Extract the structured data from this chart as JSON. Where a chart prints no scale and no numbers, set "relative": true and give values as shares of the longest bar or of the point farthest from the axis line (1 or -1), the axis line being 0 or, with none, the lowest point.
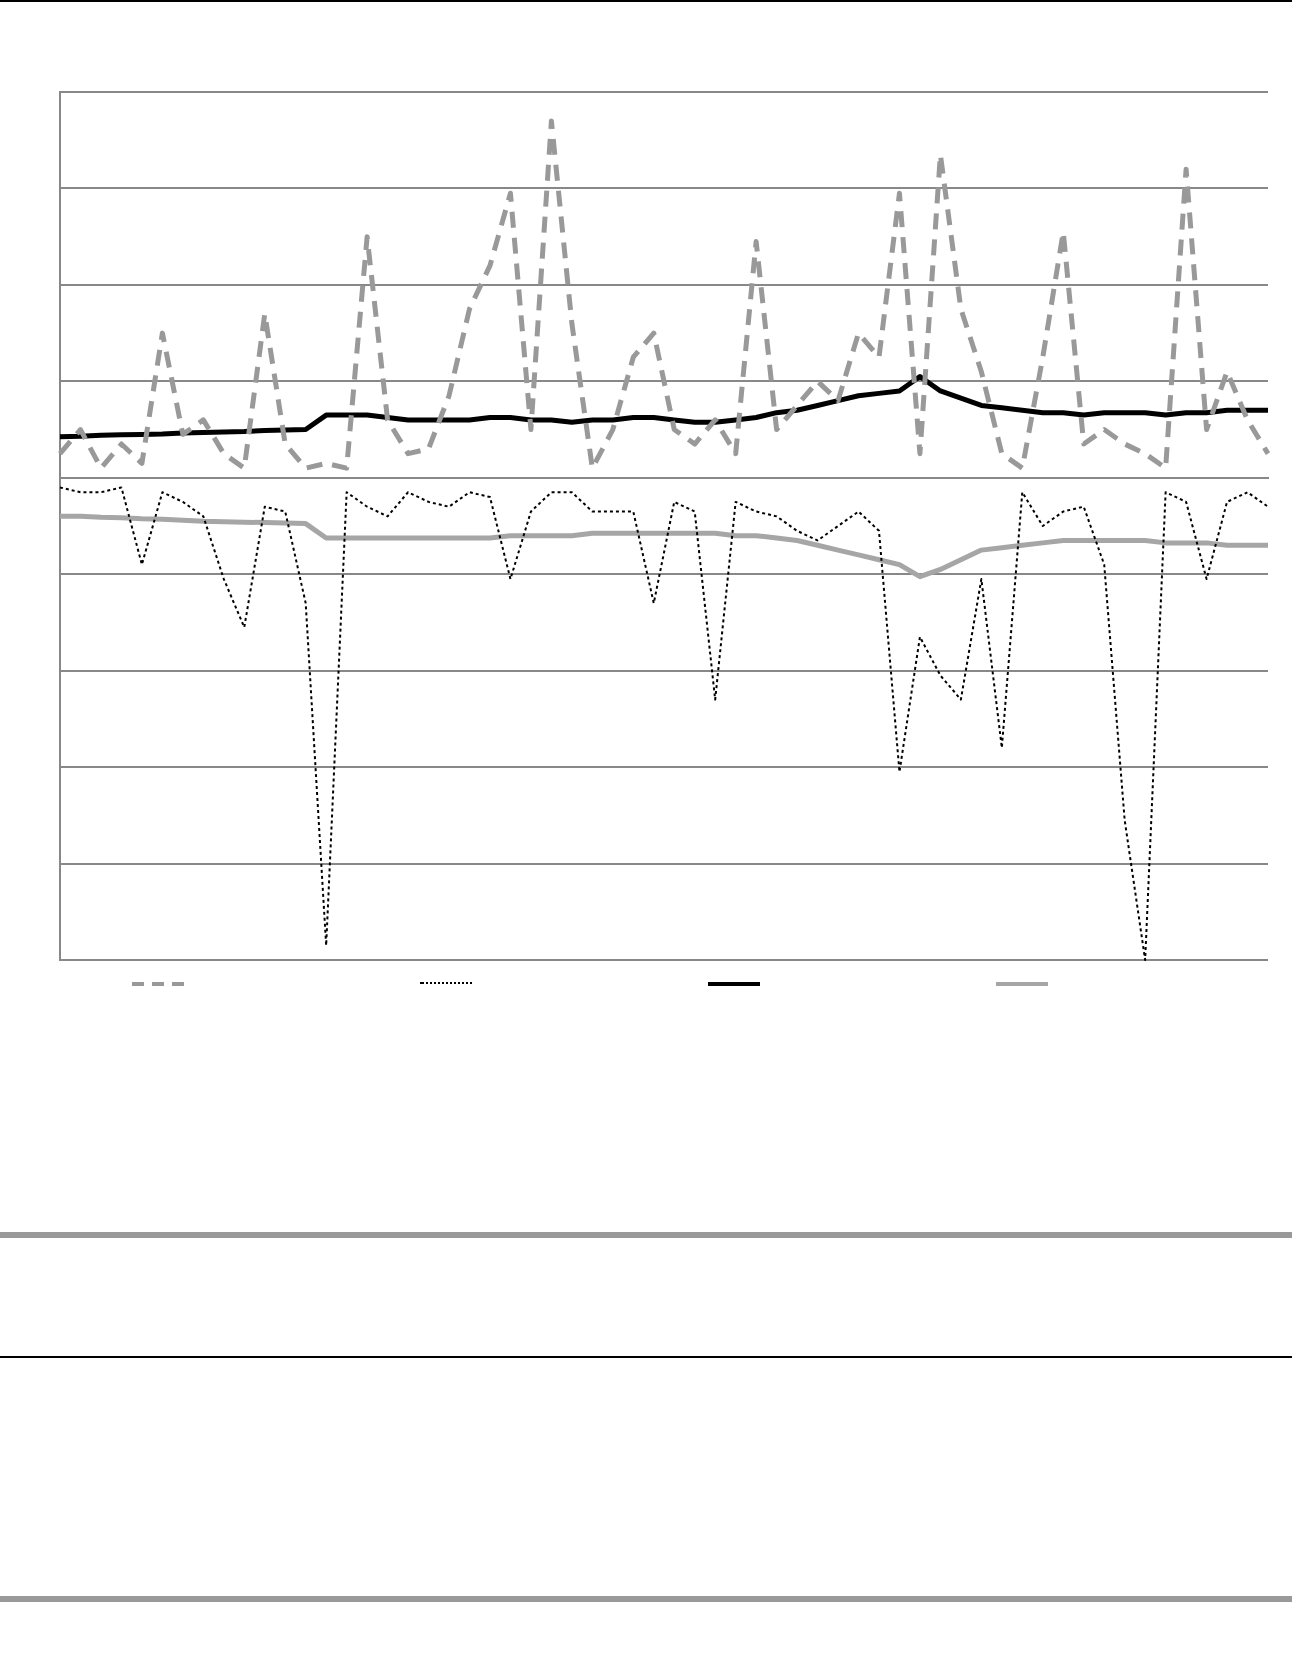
{
  "chart_data": {
    "type": "line",
    "relative": true,
    "grid": "y",
    "marker": "none",
    "categories": [
      null,
      null,
      null,
      null,
      null,
      null,
      null,
      null,
      null,
      null,
      null,
      null,
      null,
      null,
      null,
      null,
      null,
      null,
      null,
      null,
      null,
      null,
      null,
      null,
      null,
      null,
      null,
      null,
      null,
      null,
      null,
      null,
      null,
      null,
      null,
      null,
      null,
      null,
      null,
      null,
      null,
      null,
      null,
      null,
      null,
      null,
      null,
      null,
      null,
      null,
      null,
      null,
      null,
      null,
      null,
      null,
      null,
      null,
      null,
      null
    ],
    "series": [
      {
        "color": "#999999",
        "line_style": "dashed",
        "values": [
          0.05,
          0.1,
          0.02,
          0.07,
          0.03,
          0.3,
          0.09,
          0.12,
          0.05,
          0.02,
          0.34,
          0.07,
          0.02,
          0.03,
          0.02,
          0.5,
          0.12,
          0.05,
          0.06,
          0.17,
          0.35,
          0.44,
          0.59,
          0.1,
          0.74,
          0.32,
          0.02,
          0.1,
          0.25,
          0.3,
          0.1,
          0.07,
          0.12,
          0.05,
          0.49,
          0.1,
          0.15,
          0.2,
          0.16,
          0.3,
          0.25,
          0.59,
          0.05,
          0.67,
          0.35,
          0.22,
          0.05,
          0.02,
          0.25,
          0.51,
          0.07,
          0.1,
          0.07,
          0.05,
          0.02,
          0.64,
          0.1,
          0.22,
          0.12,
          0.05
        ]
      },
      {
        "color": "#000000",
        "line_style": "dotted",
        "values": [
          -0.02,
          -0.03,
          -0.03,
          -0.02,
          -0.18,
          -0.03,
          -0.05,
          -0.08,
          -0.21,
          -0.31,
          -0.06,
          -0.07,
          -0.26,
          -0.97,
          -0.03,
          -0.06,
          -0.08,
          -0.03,
          -0.05,
          -0.06,
          -0.03,
          -0.04,
          -0.21,
          -0.07,
          -0.03,
          -0.03,
          -0.07,
          -0.07,
          -0.07,
          -0.26,
          -0.05,
          -0.07,
          -0.46,
          -0.05,
          -0.07,
          -0.08,
          -0.11,
          -0.13,
          -0.1,
          -0.07,
          -0.11,
          -0.61,
          -0.33,
          -0.41,
          -0.46,
          -0.21,
          -0.56,
          -0.03,
          -0.1,
          -0.07,
          -0.06,
          -0.18,
          -0.71,
          -1,
          -0.03,
          -0.05,
          -0.21,
          -0.05,
          -0.03,
          -0.06
        ]
      },
      {
        "color": "#000000",
        "line_style": "solid",
        "values": [
          0.085,
          0.086,
          0.088,
          0.089,
          0.09,
          0.091,
          0.093,
          0.094,
          0.095,
          0.096,
          0.098,
          0.099,
          0.1,
          0.13,
          0.13,
          0.13,
          0.125,
          0.12,
          0.12,
          0.12,
          0.12,
          0.125,
          0.125,
          0.12,
          0.12,
          0.115,
          0.12,
          0.12,
          0.125,
          0.125,
          0.12,
          0.115,
          0.115,
          0.12,
          0.125,
          0.135,
          0.14,
          0.15,
          0.16,
          0.17,
          0.175,
          0.18,
          0.21,
          0.18,
          0.165,
          0.15,
          0.145,
          0.14,
          0.135,
          0.135,
          0.13,
          0.135,
          0.135,
          0.135,
          0.13,
          0.135,
          0.135,
          0.14,
          0.14,
          0.14
        ]
      },
      {
        "color": "#a6a6a6",
        "line_style": "solid",
        "values": [
          -0.08,
          -0.08,
          -0.082,
          -0.083,
          -0.085,
          -0.086,
          -0.088,
          -0.09,
          -0.091,
          -0.092,
          -0.093,
          -0.094,
          -0.095,
          -0.125,
          -0.125,
          -0.125,
          -0.125,
          -0.125,
          -0.125,
          -0.125,
          -0.125,
          -0.125,
          -0.12,
          -0.12,
          -0.12,
          -0.12,
          -0.115,
          -0.115,
          -0.115,
          -0.115,
          -0.115,
          -0.115,
          -0.115,
          -0.12,
          -0.12,
          -0.125,
          -0.13,
          -0.14,
          -0.15,
          -0.16,
          -0.17,
          -0.18,
          -0.205,
          -0.19,
          -0.17,
          -0.15,
          -0.145,
          -0.14,
          -0.135,
          -0.13,
          -0.13,
          -0.13,
          -0.13,
          -0.13,
          -0.135,
          -0.135,
          -0.135,
          -0.14,
          -0.14,
          -0.14
        ]
      }
    ]
  }
}
